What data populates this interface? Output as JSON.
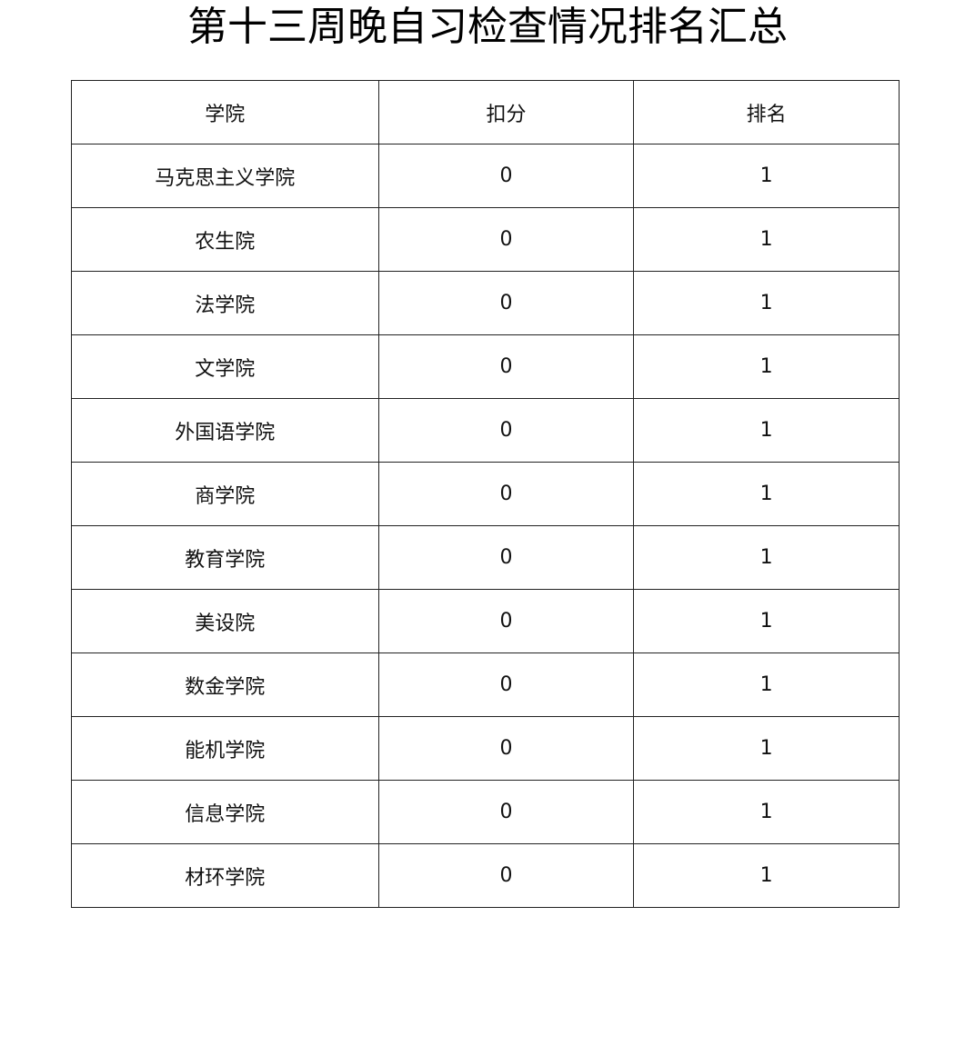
{
  "title": "第十三周晚自习检查情况排名汇总",
  "table": {
    "headers": [
      "学院",
      "扣分",
      "排名"
    ],
    "rows": [
      [
        "马克思主义学院",
        "0",
        "1"
      ],
      [
        "农生院",
        "0",
        "1"
      ],
      [
        "法学院",
        "0",
        "1"
      ],
      [
        "文学院",
        "0",
        "1"
      ],
      [
        "外国语学院",
        "0",
        "1"
      ],
      [
        "商学院",
        "0",
        "1"
      ],
      [
        "教育学院",
        "0",
        "1"
      ],
      [
        "美设院",
        "0",
        "1"
      ],
      [
        "数金学院",
        "0",
        "1"
      ],
      [
        "能机学院",
        "0",
        "1"
      ],
      [
        "信息学院",
        "0",
        "1"
      ],
      [
        "材环学院",
        "0",
        "1"
      ]
    ]
  }
}
